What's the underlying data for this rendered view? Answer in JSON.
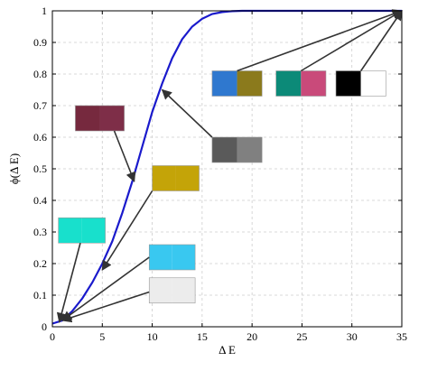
{
  "chart_data": {
    "type": "line",
    "title": "",
    "xlabel": "Δ E",
    "ylabel": "ϕ(Δ E)",
    "xlim": [
      0,
      35
    ],
    "ylim": [
      0,
      1
    ],
    "xticks": [
      0,
      5,
      10,
      15,
      20,
      25,
      30,
      35
    ],
    "yticks": [
      0,
      0.1,
      0.2,
      0.3,
      0.4,
      0.5,
      0.6,
      0.7,
      0.8,
      0.9,
      1
    ],
    "grid": true,
    "series": [
      {
        "color": "#1a1acc",
        "x": [
          0,
          1,
          2,
          3,
          4,
          5,
          6,
          7,
          8,
          9,
          10,
          11,
          12,
          13,
          14,
          15,
          16,
          17,
          18,
          19,
          20,
          22,
          25,
          30,
          35
        ],
        "y": [
          0.01,
          0.02,
          0.05,
          0.09,
          0.14,
          0.2,
          0.27,
          0.36,
          0.46,
          0.57,
          0.68,
          0.77,
          0.85,
          0.91,
          0.95,
          0.975,
          0.99,
          0.996,
          0.999,
          1,
          1,
          1,
          1,
          1,
          1
        ]
      }
    ],
    "annotations": [
      {
        "swatches": [
          "#2f78cf",
          "#8b7a1c"
        ],
        "box": [
          16,
          0.73,
          21,
          0.81
        ],
        "arrow_from": [
          18.5,
          0.81
        ],
        "arrow_to": [
          35,
          1
        ]
      },
      {
        "swatches": [
          "#0c8a78",
          "#c94a7a"
        ],
        "box": [
          22.4,
          0.73,
          27.4,
          0.81
        ],
        "arrow_from": [
          24.9,
          0.81
        ],
        "arrow_to": [
          35,
          1
        ]
      },
      {
        "swatches": [
          "#000000",
          "#ffffff"
        ],
        "box": [
          28.4,
          0.73,
          33.4,
          0.81
        ],
        "arrow_from": [
          30.9,
          0.81
        ],
        "arrow_to": [
          35,
          1
        ]
      },
      {
        "swatches": [
          "#76293e",
          "#7e2e48"
        ],
        "box": [
          2.3,
          0.62,
          7.2,
          0.7
        ],
        "arrow_from": [
          6.2,
          0.62
        ],
        "arrow_to": [
          8.2,
          0.46
        ]
      },
      {
        "swatches": [
          "#5a5a5a",
          "#808080"
        ],
        "box": [
          16,
          0.52,
          21,
          0.6
        ],
        "arrow_from": [
          16,
          0.6
        ],
        "arrow_to": [
          11,
          0.75
        ]
      },
      {
        "swatches": [
          "#c4a408",
          "#c4a408"
        ],
        "box": [
          10,
          0.43,
          14.7,
          0.51
        ],
        "arrow_from": [
          10,
          0.43
        ],
        "arrow_to": [
          5,
          0.18
        ]
      },
      {
        "swatches": [
          "#18e0cc",
          "#18e0cc"
        ],
        "box": [
          0.6,
          0.265,
          5.3,
          0.345
        ],
        "arrow_from": [
          2.8,
          0.265
        ],
        "arrow_to": [
          0.7,
          0.015
        ]
      },
      {
        "swatches": [
          "#39c8f0",
          "#39c8f0"
        ],
        "box": [
          9.7,
          0.18,
          14.3,
          0.26
        ],
        "arrow_from": [
          9.7,
          0.22
        ],
        "arrow_to": [
          1,
          0.02
        ]
      },
      {
        "swatches": [
          "#ececec",
          "#ececec"
        ],
        "box": [
          9.7,
          0.075,
          14.3,
          0.155
        ],
        "arrow_from": [
          9.7,
          0.11
        ],
        "arrow_to": [
          1,
          0.02
        ]
      }
    ]
  }
}
